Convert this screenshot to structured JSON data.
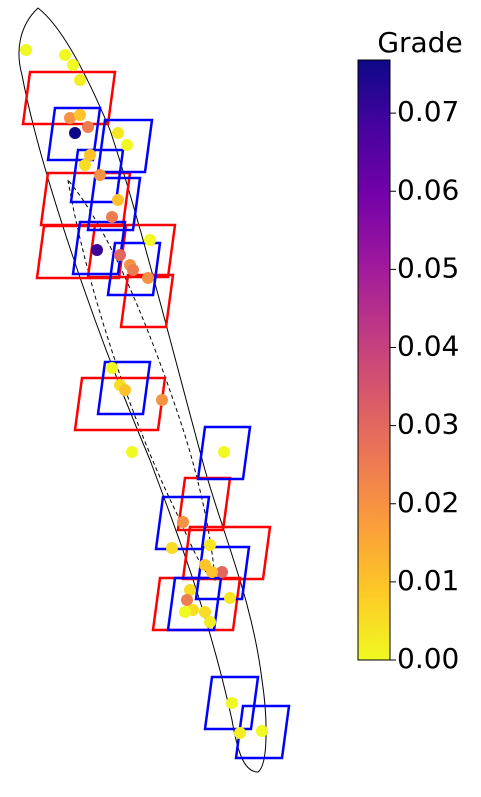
{
  "chart_data": {
    "type": "scatter",
    "colorbar_label": "Grade",
    "xlim": [
      0,
      300
    ],
    "ylim": [
      0,
      780
    ],
    "clim": [
      0,
      0.0768
    ],
    "cticks": [
      {
        "value": 0,
        "label": "0.00"
      },
      0.01,
      0.02,
      0.03,
      0.04,
      0.05,
      0.06,
      0.07
    ],
    "colormap": "plasma_r",
    "x": [
      26,
      65,
      73,
      80,
      70,
      75,
      88,
      118,
      127,
      80,
      85,
      90,
      100,
      118,
      112,
      97,
      120,
      130,
      133,
      150,
      148,
      112,
      120,
      125,
      162,
      132,
      224,
      183,
      172,
      210,
      205,
      222,
      212,
      190,
      187,
      193,
      185,
      205,
      230,
      210,
      232,
      262,
      240
    ],
    "y": [
      730,
      725,
      715,
      700,
      662,
      647,
      653,
      647,
      635,
      665,
      615,
      625,
      605,
      580,
      563,
      530,
      525,
      515,
      510,
      540,
      502,
      412,
      395,
      390,
      380,
      328,
      328,
      258,
      232,
      235,
      215,
      208,
      208,
      190,
      180,
      170,
      168,
      168,
      182,
      158,
      77,
      49,
      47
    ],
    "values": [
      0,
      0,
      0,
      0.002,
      0.02,
      0.077,
      0.025,
      0.003,
      0,
      0.01,
      0.005,
      0.01,
      0.02,
      0.01,
      0.025,
      0.07,
      0.03,
      0.02,
      0.025,
      0,
      0.02,
      0,
      0.005,
      0.01,
      0.02,
      0,
      0,
      0.02,
      0.005,
      0.003,
      0.01,
      0.03,
      0.01,
      0.005,
      0.025,
      0.005,
      0,
      0.005,
      0.003,
      0.002,
      0,
      0,
      0.002
    ]
  }
}
